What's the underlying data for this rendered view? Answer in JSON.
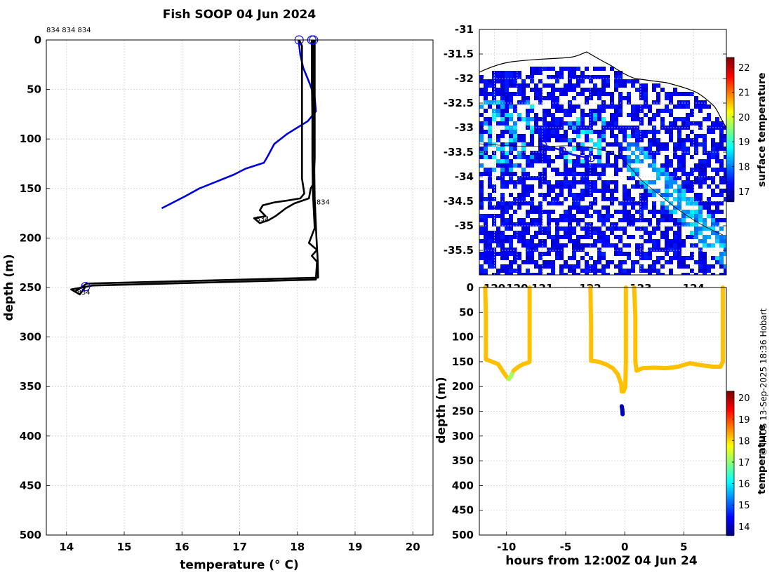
{
  "figure": {
    "title": "Fish SOOP 04 Jun 2024",
    "credit": "© IMOS 13-Sep-2025 18:36 Hobart"
  },
  "chart_data": [
    {
      "id": "profile",
      "type": "line",
      "title": "Fish SOOP 04 Jun 2024",
      "xlabel": "temperature (° C)",
      "ylabel": "depth (m)",
      "xlim": [
        13.65,
        20.35
      ],
      "ylim": [
        500,
        0
      ],
      "y_inverted": true,
      "xticks": [
        14,
        15,
        16,
        17,
        18,
        19,
        20
      ],
      "yticks": [
        0,
        50,
        100,
        150,
        200,
        250,
        300,
        350,
        400,
        450,
        500
      ],
      "grid": true,
      "top_label": "834 834 834",
      "series": [
        {
          "name": "reference profile",
          "color": "#0000dd",
          "points": [
            [
              18.02,
              0
            ],
            [
              18.05,
              15
            ],
            [
              18.1,
              28
            ],
            [
              18.22,
              45
            ],
            [
              18.3,
              58
            ],
            [
              18.32,
              72
            ],
            [
              18.18,
              82
            ],
            [
              17.82,
              95
            ],
            [
              17.6,
              105
            ],
            [
              17.48,
              118
            ],
            [
              17.42,
              124
            ],
            [
              17.1,
              130
            ],
            [
              16.9,
              136
            ],
            [
              16.6,
              143
            ],
            [
              16.3,
              150
            ],
            [
              16.05,
              158
            ],
            [
              15.65,
              170
            ]
          ]
        },
        {
          "name": "descent 1",
          "color": "#000000",
          "points": [
            [
              18.27,
              0
            ],
            [
              18.27,
              40
            ],
            [
              18.28,
              80
            ],
            [
              18.29,
              120
            ],
            [
              18.3,
              160
            ],
            [
              18.33,
              200
            ],
            [
              18.35,
              220
            ],
            [
              18.36,
              240
            ],
            [
              14.35,
              246
            ],
            [
              14.15,
              254
            ]
          ]
        },
        {
          "name": "descent 2",
          "color": "#000000",
          "points": [
            [
              18.25,
              0
            ],
            [
              18.25,
              40
            ],
            [
              18.26,
              80
            ],
            [
              18.26,
              120
            ],
            [
              18.27,
              155
            ],
            [
              18.3,
              190
            ],
            [
              18.2,
              205
            ],
            [
              18.34,
              212
            ],
            [
              18.25,
              218
            ],
            [
              18.34,
              224
            ],
            [
              18.32,
              242
            ],
            [
              14.45,
              248
            ],
            [
              14.08,
              252
            ],
            [
              14.23,
              257
            ],
            [
              14.32,
              250
            ]
          ]
        },
        {
          "name": "descent 3",
          "color": "#000000",
          "points": [
            [
              18.03,
              0
            ],
            [
              18.08,
              6
            ],
            [
              18.08,
              50
            ],
            [
              18.08,
              100
            ],
            [
              18.08,
              140
            ],
            [
              18.12,
              155
            ],
            [
              18.05,
              160
            ],
            [
              17.85,
              162
            ],
            [
              17.6,
              164
            ],
            [
              17.4,
              167
            ],
            [
              17.35,
              172
            ],
            [
              17.45,
              178
            ],
            [
              17.25,
              180
            ],
            [
              17.35,
              185
            ],
            [
              17.5,
              182
            ],
            [
              17.62,
              178
            ],
            [
              17.8,
              170
            ],
            [
              17.95,
              165
            ],
            [
              18.2,
              160
            ],
            [
              18.23,
              150
            ],
            [
              18.28,
              145
            ],
            [
              18.3,
              120
            ],
            [
              18.3,
              60
            ],
            [
              18.3,
              0
            ]
          ]
        }
      ],
      "markers": [
        {
          "temp": 18.03,
          "depth": 0
        },
        {
          "temp": 18.25,
          "depth": 0
        },
        {
          "temp": 18.28,
          "depth": 0
        },
        {
          "temp": 14.33,
          "depth": 249
        }
      ],
      "annotations": [
        {
          "text": "834",
          "temp": 18.33,
          "depth": 166
        },
        {
          "text": "834",
          "temp": 17.28,
          "depth": 183
        },
        {
          "text": "834",
          "temp": 14.18,
          "depth": 257
        }
      ]
    },
    {
      "id": "map",
      "type": "heatmap",
      "colorbar_label": "surface temperature",
      "colorbar_ticks": [
        17,
        18,
        19,
        20,
        21,
        22
      ],
      "crange": [
        16.6,
        22.4
      ],
      "lon_range": [
        119.7,
        124.6
      ],
      "lat_range": [
        -36.0,
        -31.0
      ],
      "yticks": [
        "-31",
        "-31.5",
        "-32",
        "-32.5",
        "-33",
        "-33.5",
        "-34",
        "-34.5",
        "-35",
        "-35.5"
      ],
      "xticks": [
        "120",
        "120",
        "121",
        "122",
        "123",
        "124"
      ],
      "track": [
        [
          120.95,
          -33.35
        ],
        [
          121.05,
          -33.38
        ],
        [
          121.3,
          -33.45
        ],
        [
          121.55,
          -33.55
        ],
        [
          121.88,
          -33.62
        ]
      ],
      "track_circles": [
        [
          120.97,
          -33.35
        ],
        [
          121.35,
          -33.46
        ],
        [
          121.85,
          -33.63
        ],
        [
          121.92,
          -33.63
        ]
      ]
    },
    {
      "id": "timeseries",
      "type": "scatter",
      "xlabel": "hours from 12:00Z 04 Jun 24",
      "ylabel": "depth (m)",
      "xlim": [
        -12.3,
        8.6
      ],
      "ylim": [
        500,
        0
      ],
      "xticks": [
        -10,
        -5,
        0,
        5
      ],
      "yticks": [
        0,
        50,
        100,
        150,
        200,
        250,
        300,
        350,
        400,
        450,
        500
      ],
      "colorbar_label": "temperature",
      "colorbar_ticks": [
        14,
        15,
        16,
        17,
        18,
        19,
        20
      ],
      "crange": [
        13.6,
        20.3
      ],
      "series": [
        {
          "name": "dive 1",
          "temp": 18.2,
          "points": [
            [
              -11.8,
              0
            ],
            [
              -11.75,
              60
            ],
            [
              -11.75,
              145
            ],
            [
              -11.2,
              150
            ],
            [
              -10.7,
              155
            ],
            [
              -10.3,
              170
            ],
            [
              -10.0,
              180
            ],
            [
              -9.8,
              185
            ]
          ]
        },
        {
          "name": "dive 1 rise",
          "temp": 17.2,
          "points": [
            [
              -9.8,
              185
            ],
            [
              -9.6,
              178
            ],
            [
              -9.4,
              168
            ]
          ]
        },
        {
          "name": "dive 1 return",
          "temp": 18.2,
          "points": [
            [
              -9.4,
              168
            ],
            [
              -9.0,
              160
            ],
            [
              -8.6,
              155
            ],
            [
              -8.2,
              152
            ],
            [
              -8.05,
              150
            ],
            [
              -8.05,
              80
            ],
            [
              -8.05,
              0
            ]
          ]
        },
        {
          "name": "dive 2",
          "temp": 18.2,
          "points": [
            [
              -2.9,
              0
            ],
            [
              -2.85,
              80
            ],
            [
              -2.85,
              148
            ],
            [
              -2.2,
              150
            ],
            [
              -1.6,
              155
            ],
            [
              -1.0,
              163
            ],
            [
              -0.6,
              175
            ],
            [
              -0.3,
              195
            ],
            [
              -0.25,
              210
            ]
          ]
        },
        {
          "name": "dive 2 bottom",
          "temp": 14.0,
          "points": [
            [
              -0.25,
              240
            ],
            [
              -0.2,
              248
            ],
            [
              -0.18,
              256
            ]
          ]
        },
        {
          "name": "dive 2 return",
          "temp": 18.2,
          "points": [
            [
              -0.1,
              210
            ],
            [
              0.05,
              200
            ],
            [
              0.1,
              150
            ],
            [
              0.1,
              60
            ],
            [
              0.1,
              0
            ]
          ]
        },
        {
          "name": "dive 3",
          "temp": 18.2,
          "points": [
            [
              0.8,
              0
            ],
            [
              0.9,
              60
            ],
            [
              0.9,
              150
            ],
            [
              1.0,
              168
            ],
            [
              1.5,
              163
            ],
            [
              2.5,
              162
            ],
            [
              3.5,
              163
            ],
            [
              4.5,
              160
            ],
            [
              5.5,
              153
            ],
            [
              6.5,
              157
            ],
            [
              7.5,
              160
            ],
            [
              8.1,
              160
            ],
            [
              8.3,
              150
            ],
            [
              8.3,
              60
            ],
            [
              8.3,
              0
            ]
          ]
        }
      ]
    }
  ]
}
